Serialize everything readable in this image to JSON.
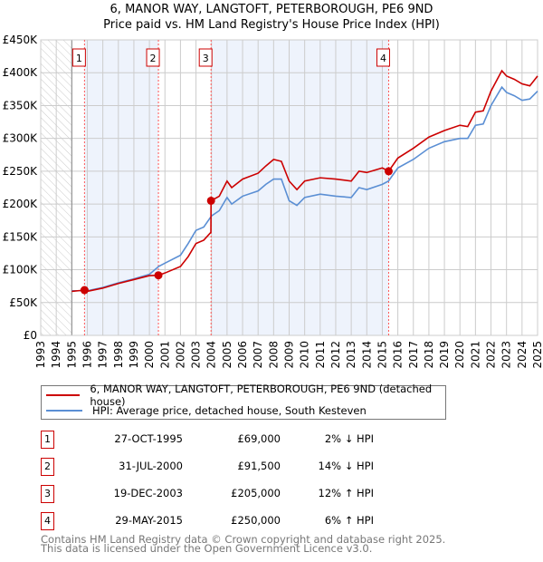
{
  "chart_data": {
    "type": "line",
    "title": "6, MANOR WAY, LANGTOFT, PETERBOROUGH, PE6 9ND",
    "subtitle": "Price paid vs. HM Land Registry's House Price Index (HPI)",
    "xlim": [
      1993,
      2025
    ],
    "ylim": [
      0,
      450000
    ],
    "x_ticks": [
      "1993",
      "1994",
      "1995",
      "1996",
      "1997",
      "1998",
      "1999",
      "2000",
      "2001",
      "2002",
      "2003",
      "2004",
      "2005",
      "2006",
      "2007",
      "2008",
      "2009",
      "2010",
      "2011",
      "2012",
      "2013",
      "2014",
      "2015",
      "2016",
      "2017",
      "2018",
      "2019",
      "2020",
      "2021",
      "2022",
      "2023",
      "2024",
      "2025"
    ],
    "y_ticks": [
      {
        "v": 0,
        "label": "£0"
      },
      {
        "v": 50000,
        "label": "£50K"
      },
      {
        "v": 100000,
        "label": "£100K"
      },
      {
        "v": 150000,
        "label": "£150K"
      },
      {
        "v": 200000,
        "label": "£200K"
      },
      {
        "v": 250000,
        "label": "£250K"
      },
      {
        "v": 300000,
        "label": "£300K"
      },
      {
        "v": 350000,
        "label": "£350K"
      },
      {
        "v": 400000,
        "label": "£400K"
      },
      {
        "v": 450000,
        "label": "£450K"
      }
    ],
    "grid": true,
    "series": [
      {
        "name": "6, MANOR WAY, LANGTOFT, PETERBOROUGH, PE6 9ND (detached house)",
        "color": "#cc0000",
        "x": [
          1995.0,
          1995.82,
          1996,
          1997,
          1998,
          1999,
          2000,
          2000.58,
          2001,
          2002,
          2002.5,
          2003,
          2003.5,
          2003.96,
          2003.97,
          2004.5,
          2005,
          2005.3,
          2006,
          2007,
          2007.5,
          2008,
          2008.5,
          2009,
          2009.5,
          2010,
          2011,
          2012,
          2013,
          2013.5,
          2014,
          2015,
          2015.41,
          2016,
          2017,
          2018,
          2019,
          2020,
          2020.5,
          2021,
          2021.5,
          2022,
          2022.7,
          2023,
          2023.5,
          2024,
          2024.5,
          2025
        ],
        "y": [
          67000,
          69000,
          67000,
          72000,
          79000,
          85000,
          91000,
          91500,
          95000,
          105000,
          120000,
          140000,
          145000,
          157000,
          205000,
          212000,
          235000,
          225000,
          238000,
          247000,
          258000,
          268000,
          265000,
          235000,
          222000,
          235000,
          240000,
          238000,
          235000,
          250000,
          248000,
          255000,
          250000,
          270000,
          285000,
          302000,
          312000,
          320000,
          318000,
          340000,
          342000,
          372000,
          403000,
          395000,
          390000,
          383000,
          380000,
          395000
        ]
      },
      {
        "name": "HPI: Average price, detached house, South Kesteven",
        "color": "#5b8fd4",
        "x": [
          1995.0,
          1996,
          1997,
          1998,
          1999,
          2000,
          2000.6,
          2001,
          2002,
          2002.5,
          2003,
          2003.5,
          2004,
          2004.5,
          2005,
          2005.3,
          2006,
          2007,
          2007.5,
          2008,
          2008.5,
          2009,
          2009.5,
          2010,
          2011,
          2012,
          2013,
          2013.5,
          2014,
          2015,
          2015.4,
          2016,
          2017,
          2018,
          2019,
          2020,
          2020.5,
          2021,
          2021.5,
          2022,
          2022.7,
          2023,
          2023.5,
          2024,
          2024.5,
          2025
        ],
        "y": [
          68000,
          68000,
          73000,
          80000,
          86000,
          93000,
          105000,
          110000,
          122000,
          140000,
          160000,
          165000,
          182000,
          190000,
          210000,
          200000,
          212000,
          220000,
          230000,
          238000,
          238000,
          205000,
          198000,
          210000,
          215000,
          212000,
          210000,
          225000,
          222000,
          230000,
          235000,
          255000,
          268000,
          285000,
          295000,
          300000,
          300000,
          320000,
          322000,
          350000,
          378000,
          370000,
          365000,
          358000,
          360000,
          372000
        ]
      }
    ],
    "sales": [
      {
        "n": "1",
        "x": 1995.82,
        "y": 69000,
        "date": "27-OCT-1995",
        "price": "£69,000",
        "hpi": "2% ↓ HPI"
      },
      {
        "n": "2",
        "x": 2000.58,
        "y": 91500,
        "date": "31-JUL-2000",
        "price": "£91,500",
        "hpi": "14% ↓ HPI"
      },
      {
        "n": "3",
        "x": 2003.97,
        "y": 205000,
        "date": "19-DEC-2003",
        "price": "£205,000",
        "hpi": "12% ↑ HPI"
      },
      {
        "n": "4",
        "x": 2015.41,
        "y": 250000,
        "date": "29-MAY-2015",
        "price": "£250,000",
        "hpi": "6% ↑ HPI"
      }
    ],
    "hatched_before": 1995
  },
  "footer": [
    "Contains HM Land Registry data © Crown copyright and database right 2025.",
    "This data is licensed under the Open Government Licence v3.0."
  ]
}
